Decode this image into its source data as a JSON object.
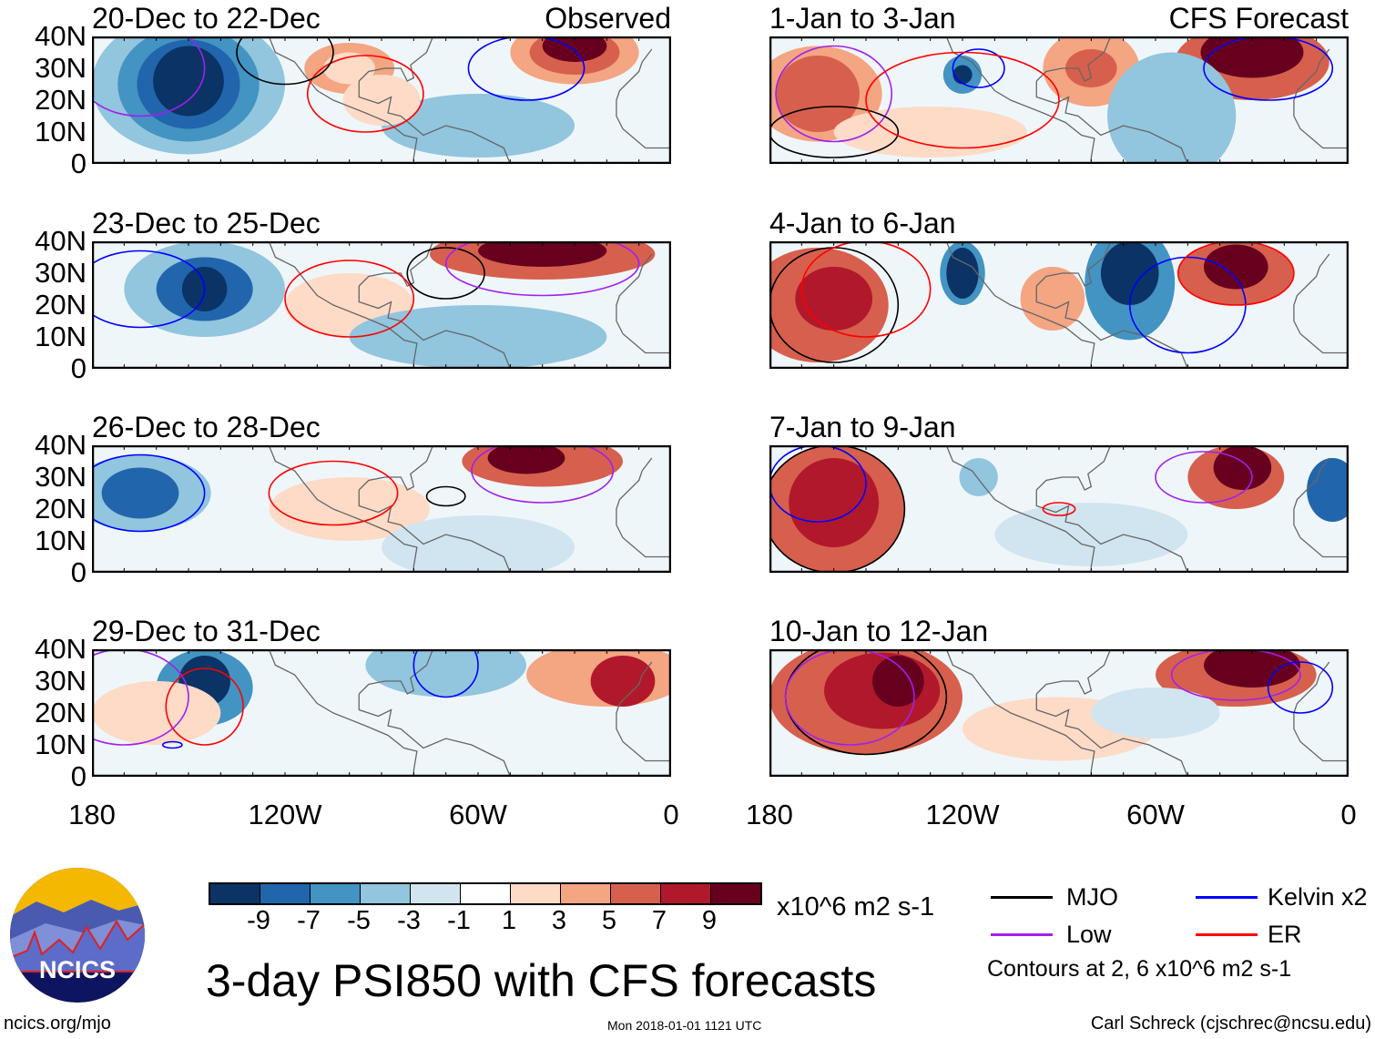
{
  "panels": [
    {
      "title": "20-Dec to 22-Dec",
      "label": "Observed"
    },
    {
      "title": "1-Jan to 3-Jan",
      "label": "CFS Forecast"
    },
    {
      "title": "23-Dec to 25-Dec",
      "label": ""
    },
    {
      "title": "4-Jan to 6-Jan",
      "label": ""
    },
    {
      "title": "26-Dec to 28-Dec",
      "label": ""
    },
    {
      "title": "7-Jan to 9-Jan",
      "label": ""
    },
    {
      "title": "29-Dec to 31-Dec",
      "label": ""
    },
    {
      "title": "10-Jan to 12-Jan",
      "label": ""
    }
  ],
  "lat_labels": [
    "40N",
    "30N",
    "20N",
    "10N",
    "0"
  ],
  "lon_labels": [
    "180",
    "120W",
    "60W",
    "0"
  ],
  "colorbar": {
    "colors": [
      "#0b3365",
      "#2166ac",
      "#4393c3",
      "#92c5de",
      "#d1e5f0",
      "#ffffff",
      "#fddbc7",
      "#f4a582",
      "#d6604d",
      "#b2182b",
      "#67001f"
    ],
    "labels": [
      "-9",
      "-7",
      "-5",
      "-3",
      "-1",
      "1",
      "3",
      "5",
      "7",
      "9"
    ],
    "units": "x10^6 m2 s-1"
  },
  "title": "3-day PSI850 with CFS forecasts",
  "legend": {
    "items": [
      {
        "label": "MJO",
        "color": "#000000"
      },
      {
        "label": "Kelvin x2",
        "color": "#0000ff"
      },
      {
        "label": "Low",
        "color": "#a020f0"
      },
      {
        "label": "ER",
        "color": "#ff0000"
      }
    ],
    "note": "Contours at 2, 6 x10^6 m2 s-1"
  },
  "logo": {
    "text": "NCICS"
  },
  "footer": {
    "url": "ncics.org/mjo",
    "timestamp": "Mon 2018-01-01 1121 UTC",
    "credit": "Carl Schreck (cjschrec@ncsu.edu)"
  }
}
